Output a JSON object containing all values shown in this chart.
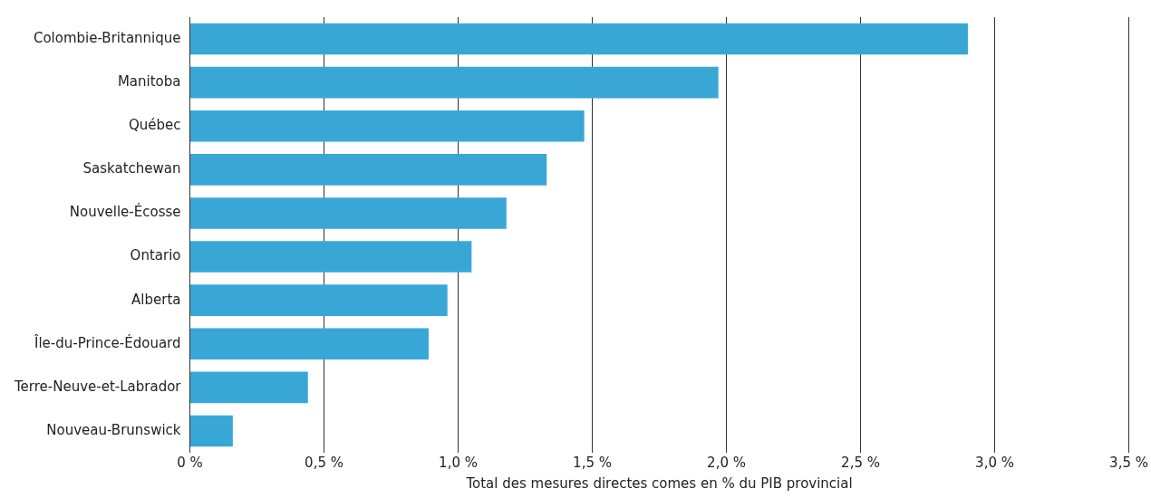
{
  "chart_data": {
    "type": "bar",
    "orientation": "horizontal",
    "xlabel": "Total des mesures directes comes en % du PIB provincial",
    "categories": [
      "Colombie-Britannique",
      "Manitoba",
      "Québec",
      "Saskatchewan",
      "Nouvelle-Écosse",
      "Ontario",
      "Alberta",
      "Île-du-Prince-Édouard",
      "Terre-Neuve-et-Labrador",
      "Nouveau-Brunswick"
    ],
    "values": [
      2.9,
      1.97,
      1.47,
      1.33,
      1.18,
      1.05,
      0.96,
      0.89,
      0.44,
      0.16
    ],
    "color": "#39a7d6",
    "xlim": [
      0,
      3.5
    ],
    "xticks": [
      {
        "value": 0,
        "label": "0 %"
      },
      {
        "value": 0.5,
        "label": "0,5 %"
      },
      {
        "value": 1,
        "label": "1,0 %"
      },
      {
        "value": 1.5,
        "label": "1,5 %"
      },
      {
        "value": 2,
        "label": "2,0 %"
      },
      {
        "value": 2.5,
        "label": "2,5 %"
      },
      {
        "value": 3,
        "label": "3,0 %"
      },
      {
        "value": 3.5,
        "label": "3,5 %"
      }
    ],
    "grid": "x",
    "legend": false
  }
}
